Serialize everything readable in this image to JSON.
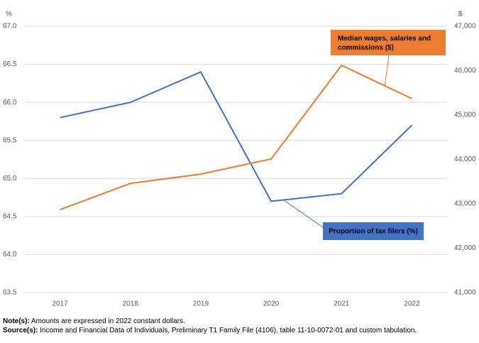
{
  "chart_data": {
    "type": "line",
    "y_unit": "%",
    "y2_unit": "$",
    "categories": [
      "2017",
      "2018",
      "2019",
      "2020",
      "2021",
      "2022"
    ],
    "series": [
      {
        "name": "Proportion of tax filers (%)",
        "color": "#4472c4",
        "values": [
          65.8,
          66.0,
          66.4,
          64.7,
          64.8,
          65.7
        ]
      },
      {
        "name": "Median wages, salaries and commissions ($)",
        "color": "#ed7d31",
        "axis": "y2",
        "values": [
          42870,
          43460,
          43670,
          44010,
          46120,
          45370
        ]
      }
    ],
    "ylim": [
      63.5,
      67.0
    ],
    "yticks": [
      63.5,
      {
        "value": 64.0,
        "label": "64.0"
      },
      64.5,
      {
        "value": 65.0,
        "label": "65.0"
      },
      65.5,
      {
        "value": 66.0,
        "label": "66.0"
      },
      66.5,
      {
        "value": 67.0,
        "label": "67.0"
      }
    ],
    "y2lim": [
      41000,
      47000
    ],
    "y2ticks": [
      {
        "value": 41000,
        "label": "41,000"
      },
      {
        "value": 42000,
        "label": "42,000"
      },
      {
        "value": 43000,
        "label": "43,000"
      },
      {
        "value": 44000,
        "label": "44,000"
      },
      {
        "value": 45000,
        "label": "45,000"
      },
      {
        "value": 46000,
        "label": "46,000"
      },
      {
        "value": 47000,
        "label": "47,000"
      }
    ],
    "grid": true,
    "note_label": "Note(s):",
    "note": "Amounts are expressed in 2022 constant dollars.",
    "source_label": "Source(s):",
    "source": "Income and Financial Data of Individuals, Preliminary T1 Family File (4106), table 11-10-0072-01 and custom tabulation."
  }
}
